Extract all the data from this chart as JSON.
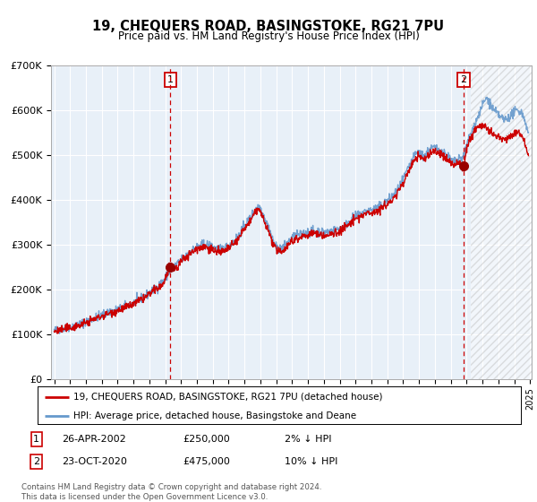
{
  "title": "19, CHEQUERS ROAD, BASINGSTOKE, RG21 7PU",
  "subtitle": "Price paid vs. HM Land Registry's House Price Index (HPI)",
  "ylim": [
    0,
    700000
  ],
  "yticks": [
    0,
    100000,
    200000,
    300000,
    400000,
    500000,
    600000,
    700000
  ],
  "ytick_labels": [
    "£0",
    "£100K",
    "£200K",
    "£300K",
    "£400K",
    "£500K",
    "£600K",
    "£700K"
  ],
  "bg_color": "#e8f0f8",
  "grid_color": "#ffffff",
  "hpi_color": "#6699cc",
  "price_color": "#cc0000",
  "marker_color": "#990000",
  "vline_color": "#cc0000",
  "purchase1_price": 250000,
  "purchase1_x": 2002.32,
  "purchase2_price": 475000,
  "purchase2_x": 2020.81,
  "legend_label_price": "19, CHEQUERS ROAD, BASINGSTOKE, RG21 7PU (detached house)",
  "legend_label_hpi": "HPI: Average price, detached house, Basingstoke and Deane",
  "table_row1": [
    "1",
    "26-APR-2002",
    "£250,000",
    "2% ↓ HPI"
  ],
  "table_row2": [
    "2",
    "23-OCT-2020",
    "£475,000",
    "10% ↓ HPI"
  ],
  "footer": "Contains HM Land Registry data © Crown copyright and database right 2024.\nThis data is licensed under the Open Government Licence v3.0.",
  "xmin": 1995,
  "xmax": 2025,
  "hatch_start": 2021.25
}
